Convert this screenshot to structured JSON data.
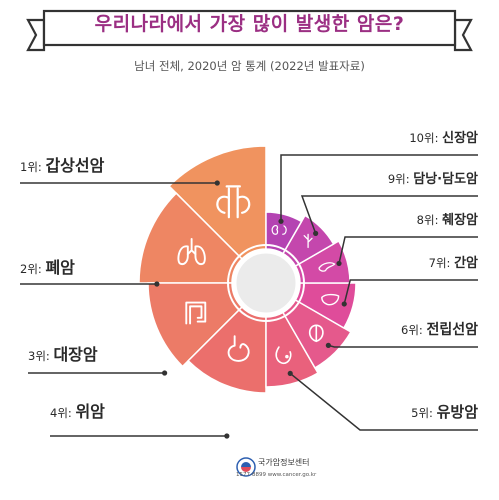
{
  "title": "우리나라에서 가장 많이 발생한 암은?",
  "subtitle": "남녀 전체, 2020년 암 통계 (2022년 발표자료)",
  "chart_data": {
    "type": "pie",
    "title": "우리나라에서 가장 많이 발생한 암은?",
    "subtitle": "남녀 전체, 2020년 암 통계 (2022년 발표자료)",
    "ranks": [
      {
        "rank": 1,
        "label": "1위:",
        "name": "갑상선암",
        "organ_icon": "thyroid-icon",
        "color": "#f0935f"
      },
      {
        "rank": 2,
        "label": "2위:",
        "name": "폐암",
        "organ_icon": "lungs-icon",
        "color": "#ee8663"
      },
      {
        "rank": 3,
        "label": "3위:",
        "name": "대장암",
        "organ_icon": "colon-icon",
        "color": "#ec7b67"
      },
      {
        "rank": 4,
        "label": "4위:",
        "name": "위암",
        "organ_icon": "stomach-icon",
        "color": "#eb6f6c"
      },
      {
        "rank": 5,
        "label": "5위:",
        "name": "유방암",
        "organ_icon": "breast-icon",
        "color": "#e9617c"
      },
      {
        "rank": 6,
        "label": "6위:",
        "name": "전립선암",
        "organ_icon": "prostate-icon",
        "color": "#e5598c"
      },
      {
        "rank": 7,
        "label": "7위:",
        "name": "간암",
        "organ_icon": "liver-icon",
        "color": "#df4c9a"
      },
      {
        "rank": 8,
        "label": "8위:",
        "name": "췌장암",
        "organ_icon": "pancreas-icon",
        "color": "#d34aa6"
      },
      {
        "rank": 9,
        "label": "9위:",
        "name": "담낭·담도암",
        "organ_icon": "gallbladder-icon",
        "color": "#c447ad"
      },
      {
        "rank": 10,
        "label": "10위:",
        "name": "신장암",
        "organ_icon": "kidney-icon",
        "color": "#b443b2"
      }
    ]
  },
  "footer": {
    "name": "국가암정보센터",
    "contact": "1577-8899 www.cancer.go.kr"
  }
}
